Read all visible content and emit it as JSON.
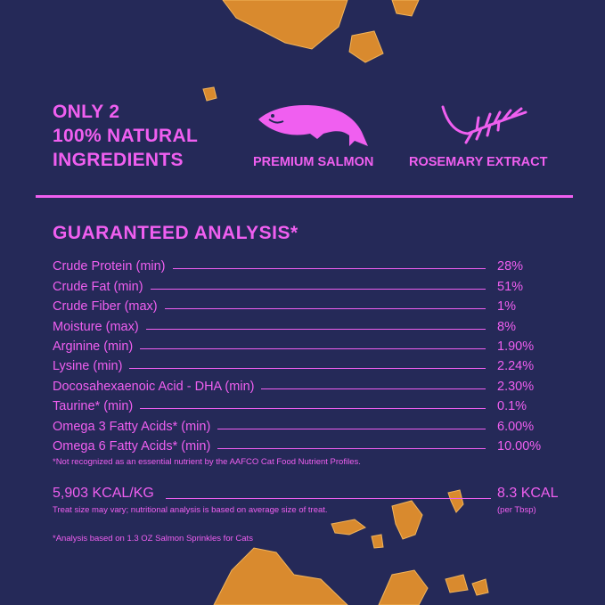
{
  "headline": [
    "ONLY 2",
    "100% NATURAL",
    "INGREDIENTS"
  ],
  "ingredients": [
    {
      "label": "PREMIUM SALMON",
      "icon": "salmon-icon"
    },
    {
      "label": "ROSEMARY EXTRACT",
      "icon": "rosemary-icon"
    }
  ],
  "analysis": {
    "title": "GUARANTEED ANALYSIS*",
    "rows": [
      {
        "label": "Crude Protein (min)",
        "value": "28%"
      },
      {
        "label": "Crude Fat (min)",
        "value": "51%"
      },
      {
        "label": "Crude Fiber (max)",
        "value": "1%"
      },
      {
        "label": "Moisture (max)",
        "value": "8%"
      },
      {
        "label": "Arginine (min)",
        "value": "1.90%"
      },
      {
        "label": "Lysine (min)",
        "value": "2.24%"
      },
      {
        "label": "Docosahexaenoic Acid - DHA (min)",
        "value": "2.30%"
      },
      {
        "label": "Taurine* (min)",
        "value": "0.1%"
      },
      {
        "label": "Omega 3 Fatty Acids* (min)",
        "value": "6.00%"
      },
      {
        "label": "Omega 6 Fatty Acids* (min)",
        "value": "10.00%"
      }
    ],
    "footnote": "*Not recognized as an essential nutrient by the AAFCO Cat Food Nutrient Profiles."
  },
  "calories": {
    "per_kg": "5,903 KCAL/KG",
    "per_serving": "8.3 KCAL",
    "serving_unit": "(per Tbsp)",
    "note": "Treat size may vary; nutritional analysis is based on average size of treat."
  },
  "bottom_note": "*Analysis based on 1.3 OZ Salmon Sprinkles for Cats",
  "colors": {
    "background": "#252958",
    "accent": "#f05ff0",
    "crumbs": "#d98a2e"
  }
}
